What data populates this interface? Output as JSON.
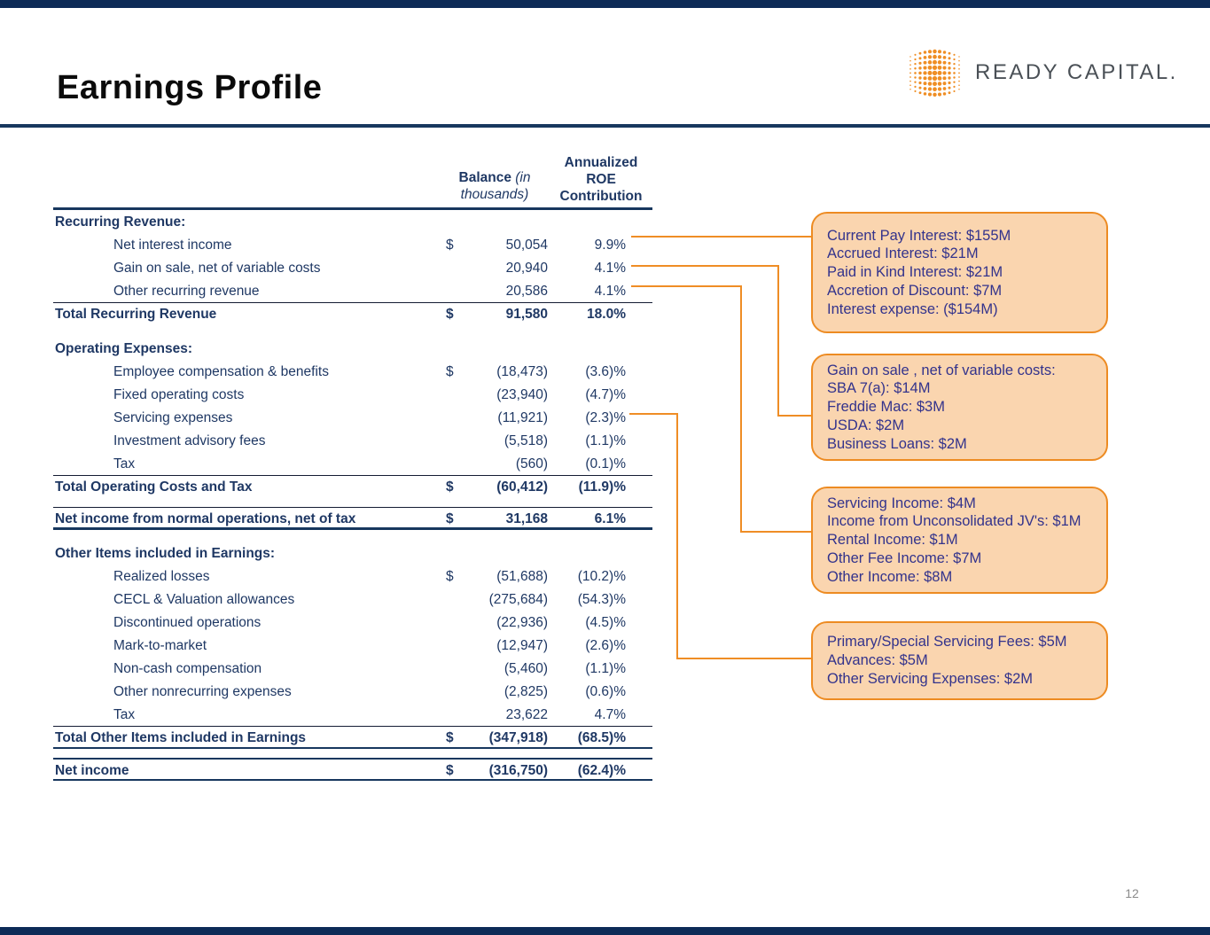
{
  "slide": {
    "title": "Earnings Profile",
    "page_number": "12"
  },
  "logo": {
    "brand": "READY CAPITAL."
  },
  "table": {
    "header": {
      "balance_bold": "Balance",
      "balance_italic_1": " (in",
      "balance_italic_2": "thousands)",
      "roe_line_1": "Annualized",
      "roe_line_2": "ROE",
      "roe_line_3": "Contribution"
    },
    "rows": [
      {
        "type": "group",
        "label": "Recurring Revenue:",
        "dollar": "",
        "balance": "",
        "roe": ""
      },
      {
        "type": "item",
        "label": "Net interest income",
        "dollar": "$",
        "balance": "50,054",
        "roe": "9.9%"
      },
      {
        "type": "item",
        "label": "Gain on sale, net of variable costs",
        "dollar": "",
        "balance": "20,940",
        "roe": "4.1%"
      },
      {
        "type": "item",
        "label": "Other recurring revenue",
        "dollar": "",
        "balance": "20,586",
        "roe": "4.1%"
      },
      {
        "type": "total",
        "label": "Total Recurring Revenue",
        "dollar": "$",
        "balance": "91,580",
        "roe": "18.0%"
      },
      {
        "type": "spacer-md"
      },
      {
        "type": "group",
        "label": "Operating Expenses:",
        "dollar": "",
        "balance": "",
        "roe": ""
      },
      {
        "type": "item",
        "label": "Employee compensation & benefits",
        "dollar": "$",
        "balance": "(18,473)",
        "roe": "(3.6)%"
      },
      {
        "type": "item",
        "label": "Fixed operating costs",
        "dollar": "",
        "balance": "(23,940)",
        "roe": "(4.7)%"
      },
      {
        "type": "item",
        "label": "Servicing expenses",
        "dollar": "",
        "balance": "(11,921)",
        "roe": "(2.3)%"
      },
      {
        "type": "item",
        "label": "Investment advisory fees",
        "dollar": "",
        "balance": "(5,518)",
        "roe": "(1.1)%"
      },
      {
        "type": "item",
        "label": "Tax",
        "dollar": "",
        "balance": "(560)",
        "roe": "(0.1)%"
      },
      {
        "type": "total",
        "label": "Total Operating Costs and Tax",
        "dollar": "$",
        "balance": "(60,412)",
        "roe": "(11.9)%"
      },
      {
        "type": "spacer-sm"
      },
      {
        "type": "net",
        "label": "Net income from normal operations, net of tax",
        "dollar": "$",
        "balance": "31,168",
        "roe": "6.1%"
      },
      {
        "type": "spacer-md"
      },
      {
        "type": "group",
        "label": "Other Items included in Earnings:",
        "dollar": "",
        "balance": "",
        "roe": ""
      },
      {
        "type": "item",
        "label": "Realized losses",
        "dollar": "$",
        "balance": "(51,688)",
        "roe": "(10.2)%"
      },
      {
        "type": "item",
        "label": "CECL & Valuation allowances",
        "dollar": "",
        "balance": "(275,684)",
        "roe": "(54.3)%"
      },
      {
        "type": "item",
        "label": "Discontinued operations",
        "dollar": "",
        "balance": "(22,936)",
        "roe": "(4.5)%"
      },
      {
        "type": "item",
        "label": "Mark-to-market",
        "dollar": "",
        "balance": "(12,947)",
        "roe": "(2.6)%"
      },
      {
        "type": "item",
        "label": "Non-cash compensation",
        "dollar": "",
        "balance": "(5,460)",
        "roe": "(1.1)%"
      },
      {
        "type": "item",
        "label": "Other nonrecurring expenses",
        "dollar": "",
        "balance": "(2,825)",
        "roe": "(0.6)%"
      },
      {
        "type": "item",
        "label": "Tax",
        "dollar": "",
        "balance": "23,622",
        "roe": "4.7%"
      },
      {
        "type": "total2",
        "label": "Total Other Items included in Earnings",
        "dollar": "$",
        "balance": "(347,918)",
        "roe": "(68.5)%"
      },
      {
        "type": "spacer-sm"
      },
      {
        "type": "grand",
        "label": "Net income",
        "dollar": "$",
        "balance": "(316,750)",
        "roe": "(62.4)%"
      }
    ]
  },
  "callouts": [
    {
      "lines": [
        "Current Pay Interest: $155M",
        "Accrued Interest: $21M",
        "Paid in Kind Interest: $21M",
        "Accretion of Discount: $7M",
        "Interest expense: ($154M)"
      ]
    },
    {
      "lines": [
        "Gain on sale , net of variable costs:",
        "SBA 7(a): $14M",
        "Freddie Mac: $3M",
        "USDA: $2M",
        "Business Loans: $2M"
      ]
    },
    {
      "lines": [
        "Servicing Income: $4M",
        "Income from Unconsolidated JV's: $1M",
        "Rental Income: $1M",
        "Other Fee Income: $7M",
        "Other Income: $8M"
      ]
    },
    {
      "lines": [
        "Primary/Special Servicing Fees: $5M",
        "Advances: $5M",
        "Other Servicing Expenses: $2M"
      ]
    }
  ],
  "colors": {
    "navy_text": "#1f3864",
    "rule_navy": "#17375e",
    "edge_bar": "#0d2b57",
    "callout_fill": "#fad5af",
    "callout_border": "#ed8b22",
    "callout_text": "#33338c",
    "connector": "#ef8d25",
    "logo_dots": "#ef8e24"
  }
}
